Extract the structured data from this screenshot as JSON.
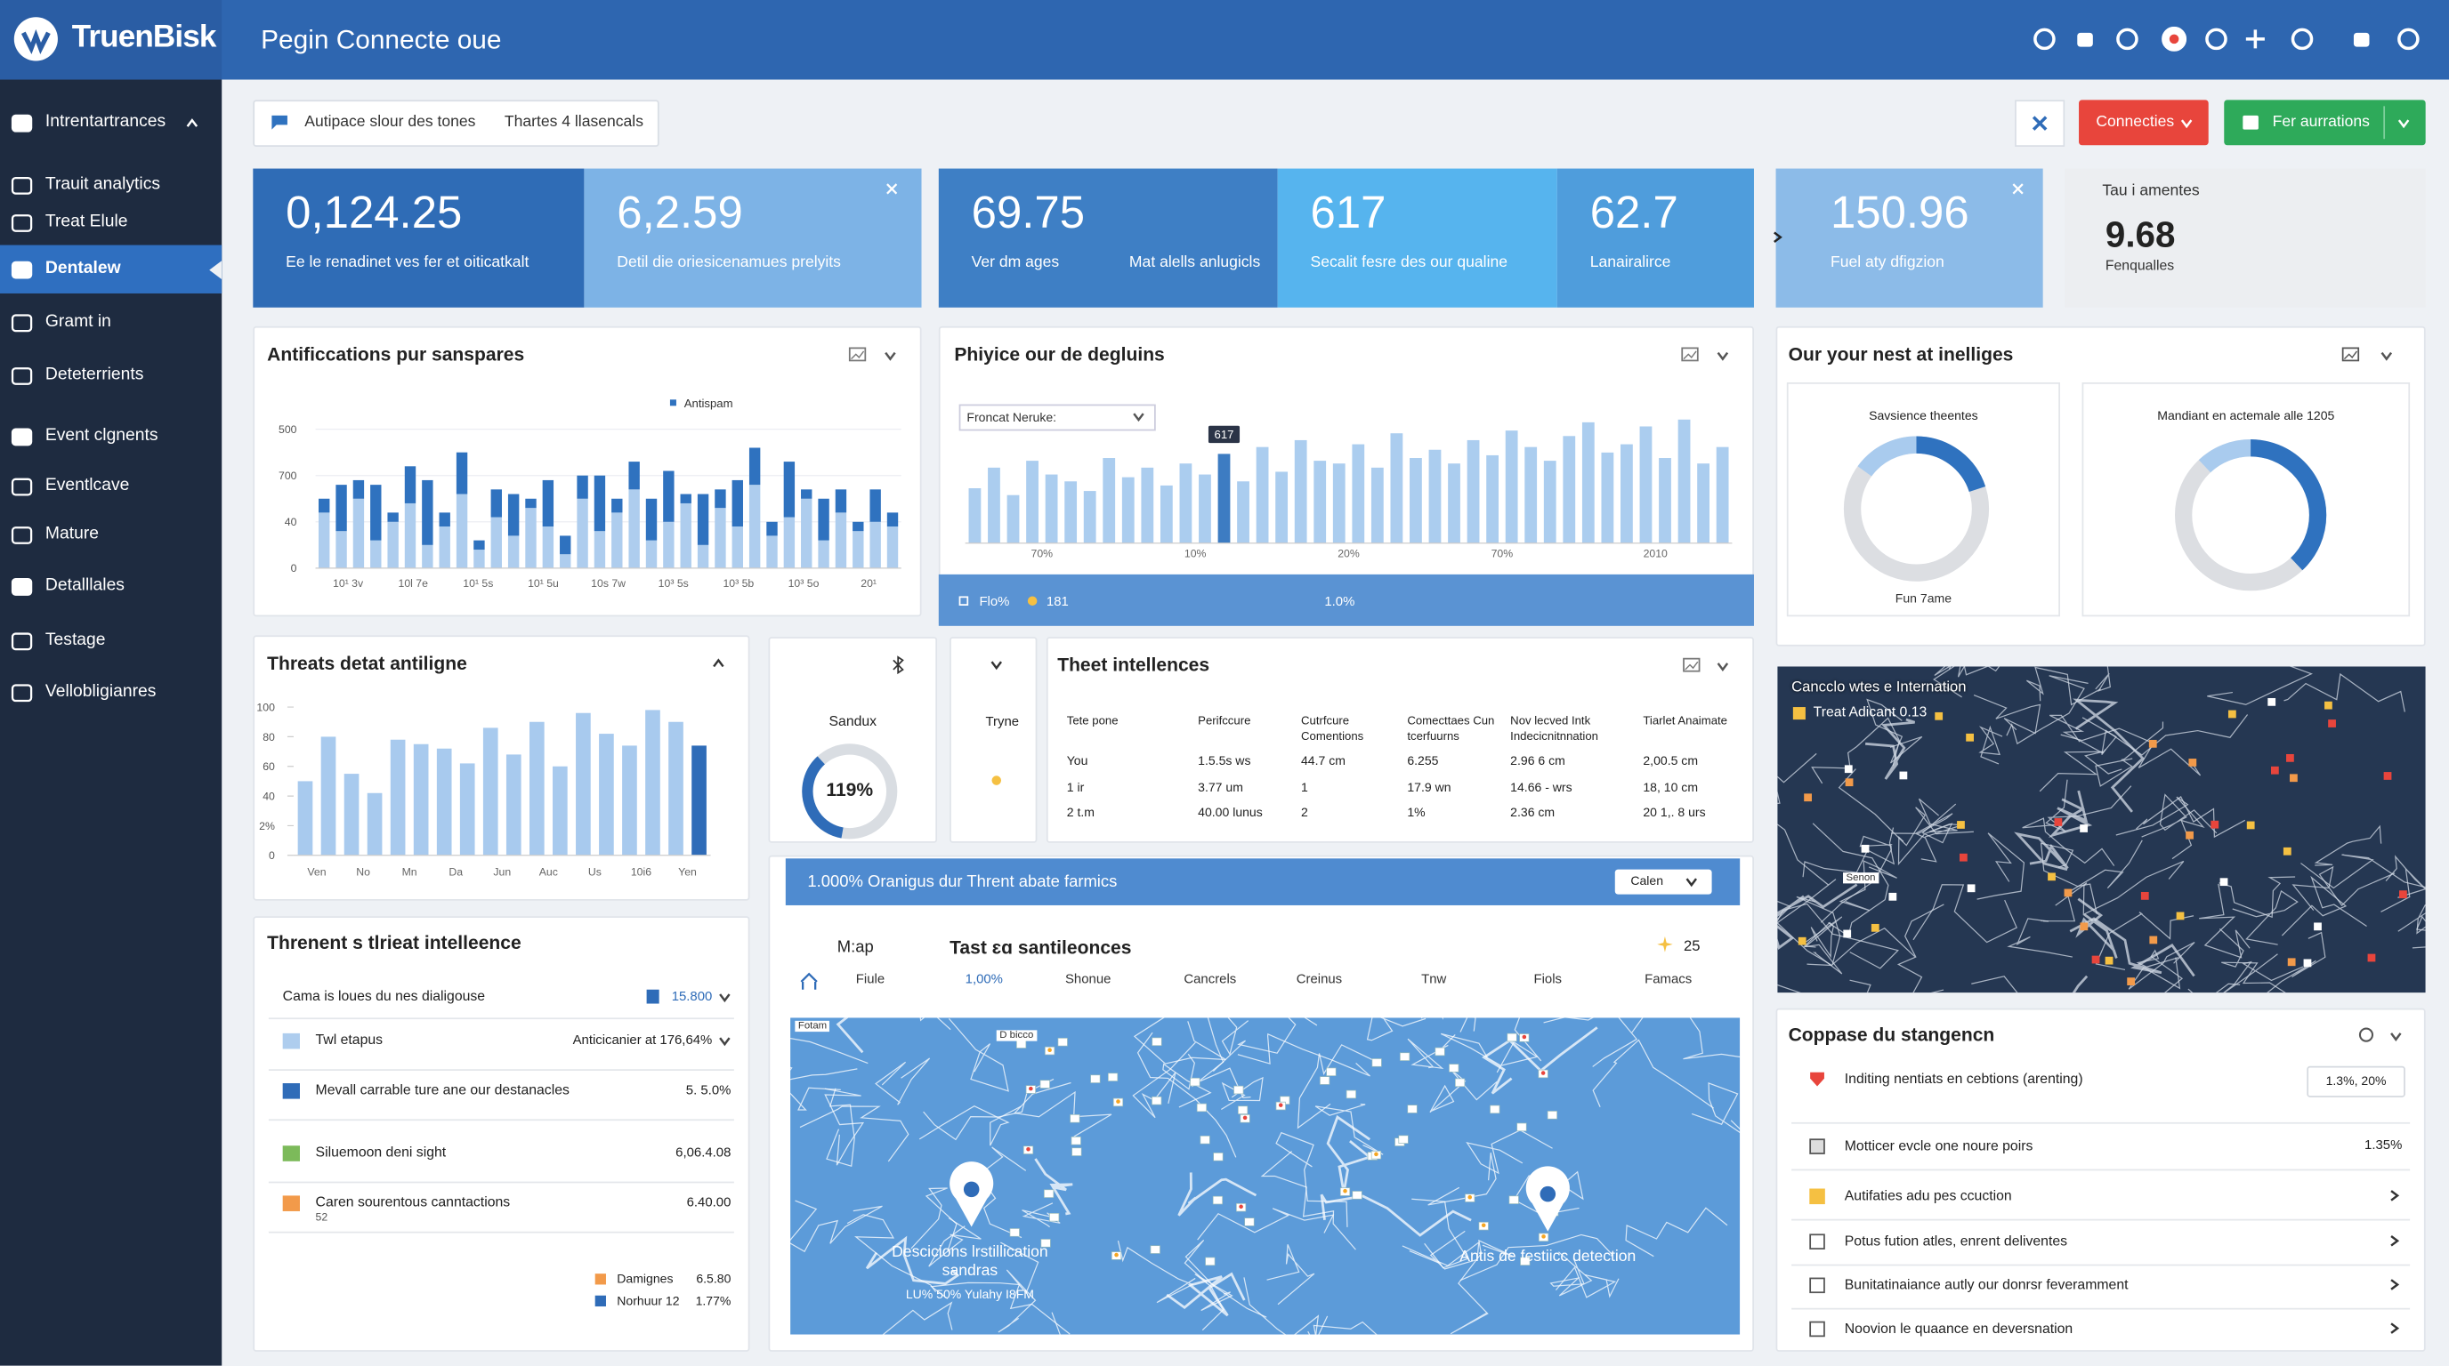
{
  "header": {
    "brand": "TruenBisk",
    "title": "Pegin Connecte oue"
  },
  "sidebar": {
    "items": [
      "Intrentartrances",
      "Trauit analytics",
      "Treat Elule",
      "Dentalew",
      "Gramt in",
      "Deteterrients",
      "Event clgnents",
      "Eventlcave",
      "Mature",
      "Detalllales",
      "Testage",
      "Vellobligianres"
    ],
    "active": "Dentalew"
  },
  "toolbar": {
    "filter": "Autipace slour des tones",
    "filter_tag": "Thartes 4 llasencals",
    "buttons": [
      "Connecties",
      "Fer aurrations"
    ]
  },
  "kpis": [
    {
      "value": "0,124.25",
      "label": "Ee le renadinet ves fer et oiticatkalt"
    },
    {
      "value": "6,2.59",
      "label": "Detil die oriesicenamues prelyits"
    },
    {
      "value": "69.75",
      "label": "Ver dm ages",
      "label2": "Mat alells anlugicls"
    },
    {
      "value": "617",
      "label": "Secalit fesre des our qualine"
    },
    {
      "value": "62.7",
      "label": "Lanairalirce"
    },
    {
      "value": "150.96",
      "label": "Fuel aty dfigzion"
    },
    {
      "title": "Tau i amentes",
      "value": "9.68",
      "label": "Fenqualles"
    }
  ],
  "panels": {
    "donuts_title": "Our your nest at inelliges"
  },
  "chart_data": [
    {
      "type": "bar",
      "title": "Antificcations pur sanspares",
      "stacked": true,
      "grid": true,
      "ylim": [
        0,
        3
      ],
      "yticks": [
        {
          "value": 0,
          "label": "0"
        },
        {
          "value": 1,
          "label": "40"
        },
        {
          "value": 2,
          "label": "700"
        },
        {
          "value": 3,
          "label": "500"
        }
      ],
      "x_labels": [
        "10¹ 3v",
        "10l 7e",
        "10¹ 5s",
        "10¹ 5u",
        "10s 7w",
        "10³ 5s",
        "10³ 5b",
        "10³ 5o",
        "20¹"
      ],
      "series": [
        {
          "color": "#aecdee",
          "values": [
            1.2,
            0.8,
            1.5,
            0.6,
            1.0,
            1.4,
            0.5,
            0.9,
            1.6,
            0.4,
            1.1,
            0.7,
            1.3,
            0.9,
            0.3,
            1.5,
            0.8,
            1.2,
            1.7,
            0.6,
            1.0,
            1.4,
            0.5,
            1.3,
            0.9,
            1.8,
            0.7,
            1.1,
            1.5,
            0.6,
            1.2,
            0.8,
            1.0,
            0.9
          ]
        },
        {
          "name": "Antispam",
          "color": "#2f72bf",
          "values": [
            0.3,
            1.0,
            0.4,
            1.2,
            0.2,
            0.8,
            1.4,
            0.3,
            0.9,
            0.2,
            0.6,
            0.9,
            0.2,
            1.0,
            0.4,
            0.5,
            1.2,
            0.3,
            0.6,
            0.9,
            1.1,
            0.2,
            1.1,
            0.4,
            1.0,
            0.8,
            0.3,
            1.2,
            0.2,
            0.9,
            0.5,
            0.2,
            0.7,
            0.3
          ]
        }
      ]
    },
    {
      "type": "bar",
      "title": "Phiyice our de degluins",
      "filter": "Froncat Neruke:",
      "ylim": [
        0,
        100
      ],
      "x_labels": [
        "70%",
        "10%",
        "20%",
        "70%",
        "2010"
      ],
      "color": "#abcdef",
      "values": [
        40,
        55,
        35,
        60,
        50,
        45,
        38,
        62,
        48,
        55,
        42,
        58,
        50,
        65,
        45,
        70,
        52,
        75,
        60,
        58,
        72,
        55,
        80,
        62,
        68,
        58,
        75,
        64,
        82,
        70,
        60,
        78,
        88,
        66,
        72,
        85,
        62,
        90,
        58,
        70
      ],
      "highlight": {
        "index": 13,
        "color": "#3d7cc2",
        "label": "617"
      },
      "footer": [
        "Flo%",
        "181",
        "1.0%"
      ]
    },
    {
      "type": "donut",
      "title": "Savsience theentes",
      "caption": "Fun 7ame",
      "values": [
        15,
        20
      ],
      "colors": [
        "#a9cbee",
        "#2f72bf"
      ]
    },
    {
      "type": "donut",
      "title": "Mandiant en actemale alle 1205",
      "values": [
        12,
        38
      ],
      "colors": [
        "#a9cbee",
        "#2f72bf"
      ]
    },
    {
      "type": "bar",
      "title": "Threats detat antiligne",
      "grid": false,
      "ylim": [
        0,
        100
      ],
      "yticks": [
        0,
        {
          "value": 20,
          "label": "2%"
        },
        40,
        60,
        80,
        100
      ],
      "x_labels": [
        "Ven",
        "No",
        "Mn",
        "Da",
        "Jun",
        "Auc",
        "Us",
        "10i6",
        "Yen"
      ],
      "color": "#a8caee",
      "values": [
        50,
        80,
        55,
        42,
        78,
        75,
        72,
        62,
        86,
        68,
        90,
        60,
        96,
        82,
        74,
        98,
        90,
        74
      ],
      "highlight": {
        "index": 17,
        "color": "#2f6cb8"
      }
    }
  ],
  "gauge": {
    "title": "Sandux",
    "value_label": "119%"
  },
  "tryne": {
    "title": "Tryne"
  },
  "table": {
    "title": "Theet intellences",
    "columns": [
      "Tete pone",
      "Perifccure",
      "Cutrfcure Comentions",
      "Comecttaes Cun tcerfuurns",
      "Nov lecved Intk Indecicnitnnation",
      "Tiarlet Anaimate"
    ],
    "rows": [
      [
        "You",
        "1.5.5s ws",
        "44.7 cm",
        "6.255",
        "2.96 6 cm",
        "2,00.5 cm"
      ],
      [
        "1 ir",
        "3.77 um",
        "1",
        "17.9 wn",
        "14.66 - wrs",
        "18, 10 cm"
      ],
      [
        "2 t.m",
        "40.00 lunus",
        "2",
        "1%",
        "2.36 cm",
        "20 1,. 8 urs"
      ]
    ]
  },
  "banner": {
    "text": "1.000% Oranigus dur Thrent abate farmics",
    "select": "Calen"
  },
  "tabs": {
    "map": "M:ap",
    "title": "Tast ɛɑ santileonces",
    "count": "25",
    "items": [
      "Fiule",
      "1,00%",
      "Shonue",
      "Cancrels",
      "Creinus",
      "Tnw",
      "Fiols",
      "Famacs"
    ]
  },
  "map": {
    "tags": [
      "Fotam",
      "D bicco"
    ],
    "pins": [
      {
        "label": "Descicions lrstillication sandras",
        "sub": "LU% 50% Yulahy I8FM"
      },
      {
        "label": "Antis de festiicc detection"
      }
    ]
  },
  "threat_list": {
    "title": "Threnent s tlrieat intelleence",
    "rows": [
      {
        "text": "Cama is loues du nes dialigouse",
        "value": "15.800"
      },
      {
        "text": "Twl etapus",
        "value": "Anticicanier at 176,64%",
        "color": "#aecdee"
      },
      {
        "text": "Mevall carrable ture ane our destanacles",
        "value": "5.  5.0%",
        "color": "#2f6cb8"
      },
      {
        "text": "Siluemoon deni sight",
        "value": "6,06.4.08",
        "color": "#7cba5a"
      },
      {
        "text": "Caren sourentous canntactions",
        "value": "6.40.00",
        "sub": "52",
        "color": "#f29a4a"
      }
    ],
    "legend": [
      {
        "name": "Damignes",
        "value": "6.5.80",
        "color": "#f29a4a"
      },
      {
        "name": "Norhuur 12",
        "value": "1.77%",
        "color": "#2f6cb8"
      }
    ]
  },
  "right_map": {
    "title": "Cancclo wtes e Internation",
    "legend": "Treat Adicant 0.13",
    "tag": "Senon"
  },
  "compare": {
    "title": "Coppase du stangencn",
    "rows": [
      {
        "text": "Inditing nentiats en cebtions (arenting)",
        "value": "1.3%, 20%"
      },
      {
        "text": "Motticer evcle one noure poirs",
        "value": "1.35%"
      },
      {
        "text": "Autifaties adu pes ccuction"
      },
      {
        "text": "Potus fution atles, enrent deliventes"
      },
      {
        "text": "Bunitatinaiance autly our donrsr feveramment"
      },
      {
        "text": "Noovion le quaance en deversnation"
      }
    ]
  }
}
